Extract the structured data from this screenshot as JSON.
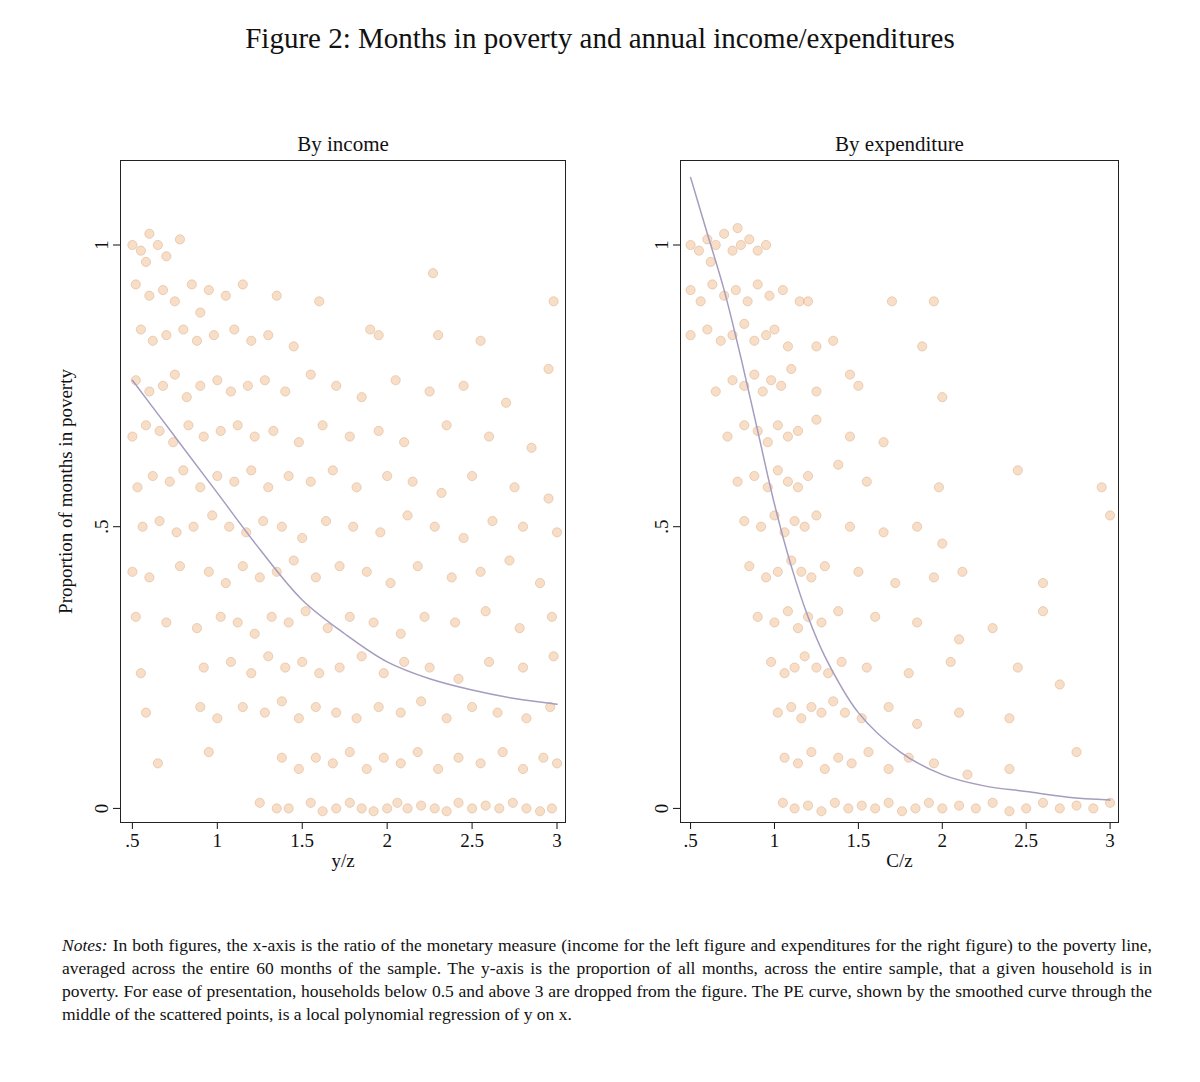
{
  "title": "Figure 2: Months in poverty and annual income/expenditures",
  "notes_label": "Notes:",
  "notes": "In both figures, the x-axis is the ratio of the monetary measure (income for the left figure and expenditures for the right figure) to the poverty line, averaged across the entire 60 months of the sample. The y-axis is the proportion of all months, across the entire sample, that a given household is in poverty. For ease of presentation, households below 0.5 and above 3 are dropped from the figure. The PE curve, shown by the smoothed curve through the middle of the scattered points, is a local polynomial regression of y on x.",
  "chart_data": [
    {
      "type": "scatter",
      "title": "By income",
      "xlabel": "y/z",
      "ylabel": "Proportion of months in poverty",
      "xlim": [
        0.43,
        3.05
      ],
      "ylim": [
        -0.025,
        1.15
      ],
      "xticks": [
        {
          "value": 0.5,
          "label": ".5"
        },
        1,
        1.5,
        2,
        2.5,
        3
      ],
      "yticks": [
        0,
        {
          "value": 0.5,
          "label": ".5"
        },
        1
      ],
      "grid": false,
      "series": [
        {
          "type": "scatter",
          "marker": "circle",
          "color": "#f2c299",
          "x": [
            0.5,
            0.55,
            0.6,
            0.65,
            0.7,
            0.78,
            0.58,
            0.52,
            0.6,
            0.68,
            0.75,
            0.85,
            0.95,
            1.05,
            1.15,
            1.35,
            1.6,
            2.27,
            0.9,
            0.55,
            0.62,
            0.7,
            0.8,
            0.88,
            0.98,
            1.1,
            1.2,
            1.3,
            1.45,
            1.9,
            1.95,
            2.3,
            2.55,
            2.98,
            0.52,
            0.6,
            0.68,
            0.75,
            0.82,
            0.9,
            1.0,
            1.08,
            1.18,
            1.28,
            1.4,
            1.55,
            1.7,
            1.85,
            2.05,
            2.25,
            2.45,
            2.7,
            2.95,
            0.5,
            0.58,
            0.66,
            0.74,
            0.83,
            0.92,
            1.02,
            1.12,
            1.22,
            1.33,
            1.48,
            1.62,
            1.78,
            1.95,
            2.1,
            2.35,
            2.6,
            2.85,
            0.53,
            0.62,
            0.72,
            0.8,
            0.9,
            1.0,
            1.1,
            1.2,
            1.3,
            1.42,
            1.55,
            1.68,
            1.82,
            2.0,
            2.15,
            2.32,
            2.5,
            2.75,
            2.95,
            0.56,
            0.66,
            0.76,
            0.86,
            0.97,
            1.07,
            1.17,
            1.27,
            1.38,
            1.5,
            1.64,
            1.8,
            1.96,
            2.12,
            2.28,
            2.45,
            2.62,
            2.8,
            3.0,
            0.5,
            0.6,
            0.78,
            0.95,
            1.05,
            1.15,
            1.25,
            1.35,
            1.45,
            1.58,
            1.72,
            1.88,
            2.02,
            2.18,
            2.38,
            2.55,
            2.72,
            2.9,
            0.52,
            0.7,
            0.88,
            1.02,
            1.12,
            1.22,
            1.32,
            1.42,
            1.52,
            1.65,
            1.78,
            1.92,
            2.08,
            2.22,
            2.4,
            2.58,
            2.78,
            2.97,
            0.55,
            0.92,
            1.08,
            1.2,
            1.3,
            1.4,
            1.5,
            1.6,
            1.72,
            1.85,
            1.98,
            2.1,
            2.25,
            2.42,
            2.6,
            2.8,
            2.98,
            0.58,
            0.9,
            1.0,
            1.15,
            1.28,
            1.38,
            1.48,
            1.58,
            1.7,
            1.82,
            1.95,
            2.08,
            2.2,
            2.35,
            2.5,
            2.65,
            2.82,
            2.96,
            0.65,
            0.95,
            1.38,
            1.48,
            1.58,
            1.68,
            1.78,
            1.88,
            1.98,
            2.08,
            2.18,
            2.3,
            2.42,
            2.55,
            2.68,
            2.8,
            2.92,
            3.0,
            1.25,
            1.35,
            1.42,
            1.55,
            1.62,
            1.7,
            1.78,
            1.85,
            1.92,
            2.0,
            2.06,
            2.12,
            2.2,
            2.28,
            2.35,
            2.42,
            2.5,
            2.58,
            2.66,
            2.74,
            2.82,
            2.9,
            2.97
          ],
          "values": [
            1.0,
            0.99,
            1.02,
            1.0,
            0.98,
            1.01,
            0.97,
            0.93,
            0.91,
            0.92,
            0.9,
            0.93,
            0.92,
            0.91,
            0.93,
            0.91,
            0.9,
            0.95,
            0.88,
            0.85,
            0.83,
            0.84,
            0.85,
            0.83,
            0.84,
            0.85,
            0.83,
            0.84,
            0.82,
            0.85,
            0.84,
            0.84,
            0.83,
            0.9,
            0.76,
            0.74,
            0.75,
            0.77,
            0.73,
            0.75,
            0.76,
            0.74,
            0.75,
            0.76,
            0.74,
            0.77,
            0.75,
            0.73,
            0.76,
            0.74,
            0.75,
            0.72,
            0.78,
            0.66,
            0.68,
            0.67,
            0.65,
            0.68,
            0.66,
            0.67,
            0.68,
            0.66,
            0.67,
            0.65,
            0.68,
            0.66,
            0.67,
            0.65,
            0.68,
            0.66,
            0.64,
            0.57,
            0.59,
            0.58,
            0.6,
            0.57,
            0.59,
            0.58,
            0.6,
            0.57,
            0.59,
            0.58,
            0.6,
            0.57,
            0.59,
            0.58,
            0.56,
            0.59,
            0.57,
            0.55,
            0.5,
            0.51,
            0.49,
            0.5,
            0.52,
            0.5,
            0.49,
            0.51,
            0.5,
            0.48,
            0.51,
            0.5,
            0.49,
            0.52,
            0.5,
            0.48,
            0.51,
            0.5,
            0.49,
            0.42,
            0.41,
            0.43,
            0.42,
            0.4,
            0.43,
            0.41,
            0.42,
            0.44,
            0.41,
            0.43,
            0.42,
            0.4,
            0.43,
            0.41,
            0.42,
            0.44,
            0.4,
            0.34,
            0.33,
            0.32,
            0.34,
            0.33,
            0.31,
            0.34,
            0.33,
            0.35,
            0.32,
            0.34,
            0.33,
            0.31,
            0.34,
            0.33,
            0.35,
            0.32,
            0.34,
            0.24,
            0.25,
            0.26,
            0.24,
            0.27,
            0.25,
            0.26,
            0.24,
            0.25,
            0.27,
            0.24,
            0.26,
            0.25,
            0.23,
            0.26,
            0.25,
            0.27,
            0.17,
            0.18,
            0.16,
            0.18,
            0.17,
            0.19,
            0.16,
            0.18,
            0.17,
            0.16,
            0.18,
            0.17,
            0.19,
            0.16,
            0.18,
            0.17,
            0.16,
            0.18,
            0.08,
            0.1,
            0.09,
            0.07,
            0.09,
            0.08,
            0.1,
            0.07,
            0.09,
            0.08,
            0.1,
            0.07,
            0.09,
            0.08,
            0.1,
            0.07,
            0.09,
            0.08,
            0.01,
            0.0,
            0.0,
            0.01,
            -0.005,
            0.0,
            0.01,
            0.0,
            -0.005,
            0.0,
            0.01,
            0.0,
            0.005,
            0.0,
            -0.005,
            0.01,
            0.0,
            0.005,
            0.0,
            0.01,
            0.0,
            -0.005,
            0.0
          ]
        },
        {
          "type": "line",
          "line_style": "solid",
          "color": "#a59cc0",
          "x": [
            0.5,
            0.75,
            1.0,
            1.25,
            1.5,
            1.75,
            2.0,
            2.25,
            2.5,
            2.75,
            3.0
          ],
          "values": [
            0.76,
            0.66,
            0.56,
            0.46,
            0.37,
            0.31,
            0.26,
            0.23,
            0.21,
            0.195,
            0.185
          ]
        }
      ]
    },
    {
      "type": "scatter",
      "title": "By expenditure",
      "xlabel": "C/z",
      "xlim": [
        0.44,
        3.05
      ],
      "ylim": [
        -0.025,
        1.15
      ],
      "xticks": [
        {
          "value": 0.5,
          "label": ".5"
        },
        1,
        1.5,
        2,
        2.5,
        3
      ],
      "yticks": [
        0,
        {
          "value": 0.5,
          "label": ".5"
        },
        1
      ],
      "grid": false,
      "series": [
        {
          "type": "scatter",
          "marker": "circle",
          "color": "#f2c299",
          "x": [
            0.5,
            0.55,
            0.6,
            0.65,
            0.7,
            0.75,
            0.8,
            0.85,
            0.9,
            0.95,
            0.62,
            0.78,
            0.5,
            0.56,
            0.63,
            0.7,
            0.77,
            0.84,
            0.9,
            0.97,
            1.05,
            1.15,
            1.2,
            1.7,
            1.95,
            0.5,
            0.6,
            0.68,
            0.75,
            0.82,
            0.88,
            0.95,
            1.0,
            1.08,
            1.25,
            1.35,
            1.88,
            0.65,
            0.75,
            0.82,
            0.88,
            0.93,
            0.98,
            1.04,
            1.1,
            1.25,
            1.45,
            1.5,
            0.72,
            0.82,
            0.9,
            0.96,
            1.02,
            1.08,
            1.14,
            1.25,
            1.45,
            1.65,
            2.0,
            0.78,
            0.88,
            0.96,
            1.02,
            1.08,
            1.14,
            1.2,
            1.38,
            1.55,
            1.98,
            2.45,
            0.82,
            0.92,
            1.0,
            1.06,
            1.12,
            1.18,
            1.25,
            1.45,
            1.65,
            1.85,
            2.0,
            0.85,
            0.95,
            1.02,
            1.1,
            1.16,
            1.22,
            1.3,
            1.5,
            1.72,
            1.95,
            2.12,
            0.9,
            1.0,
            1.08,
            1.14,
            1.2,
            1.28,
            1.38,
            1.6,
            1.85,
            2.1,
            2.3,
            2.6,
            0.98,
            1.06,
            1.12,
            1.18,
            1.25,
            1.32,
            1.4,
            1.55,
            1.8,
            2.05,
            2.45,
            2.7,
            1.02,
            1.1,
            1.16,
            1.22,
            1.28,
            1.35,
            1.42,
            1.52,
            1.68,
            1.85,
            2.1,
            2.4,
            1.06,
            1.14,
            1.22,
            1.3,
            1.38,
            1.46,
            1.56,
            1.68,
            1.8,
            1.95,
            2.15,
            2.4,
            2.8,
            1.05,
            1.12,
            1.2,
            1.28,
            1.36,
            1.44,
            1.52,
            1.6,
            1.68,
            1.76,
            1.84,
            1.92,
            2.0,
            2.1,
            2.2,
            2.3,
            2.4,
            2.5,
            2.6,
            2.7,
            2.8,
            2.9,
            3.0,
            2.95,
            3.0,
            2.6
          ],
          "values": [
            1.0,
            0.99,
            1.01,
            1.0,
            1.02,
            0.99,
            1.0,
            1.01,
            0.99,
            1.0,
            0.97,
            1.03,
            0.92,
            0.9,
            0.93,
            0.91,
            0.92,
            0.9,
            0.93,
            0.91,
            0.92,
            0.9,
            0.9,
            0.9,
            0.9,
            0.84,
            0.85,
            0.83,
            0.84,
            0.86,
            0.83,
            0.84,
            0.85,
            0.82,
            0.82,
            0.83,
            0.82,
            0.74,
            0.76,
            0.75,
            0.77,
            0.74,
            0.76,
            0.75,
            0.78,
            0.74,
            0.77,
            0.75,
            0.66,
            0.68,
            0.67,
            0.65,
            0.68,
            0.66,
            0.67,
            0.69,
            0.66,
            0.65,
            0.73,
            0.58,
            0.59,
            0.57,
            0.6,
            0.58,
            0.57,
            0.59,
            0.61,
            0.58,
            0.57,
            0.6,
            0.51,
            0.5,
            0.52,
            0.49,
            0.51,
            0.5,
            0.52,
            0.5,
            0.49,
            0.5,
            0.47,
            0.43,
            0.41,
            0.42,
            0.44,
            0.42,
            0.41,
            0.43,
            0.42,
            0.4,
            0.41,
            0.42,
            0.34,
            0.33,
            0.35,
            0.32,
            0.34,
            0.33,
            0.35,
            0.34,
            0.33,
            0.3,
            0.32,
            0.35,
            0.26,
            0.24,
            0.25,
            0.27,
            0.25,
            0.24,
            0.26,
            0.25,
            0.24,
            0.26,
            0.25,
            0.22,
            0.17,
            0.18,
            0.16,
            0.18,
            0.17,
            0.19,
            0.17,
            0.16,
            0.18,
            0.15,
            0.17,
            0.16,
            0.09,
            0.08,
            0.1,
            0.07,
            0.09,
            0.08,
            0.1,
            0.07,
            0.09,
            0.08,
            0.06,
            0.07,
            0.1,
            0.01,
            0.0,
            0.005,
            -0.005,
            0.01,
            0.0,
            0.005,
            0.0,
            0.01,
            -0.005,
            0.0,
            0.01,
            0.0,
            0.005,
            0.0,
            0.01,
            -0.005,
            0.0,
            0.01,
            0.0,
            0.005,
            0.0,
            0.01,
            0.57,
            0.52,
            0.4
          ]
        },
        {
          "type": "line",
          "line_style": "solid",
          "color": "#a59cc0",
          "x": [
            0.5,
            0.6,
            0.7,
            0.8,
            0.9,
            1.0,
            1.1,
            1.2,
            1.3,
            1.5,
            1.75,
            2.0,
            2.25,
            2.5,
            2.75,
            3.0
          ],
          "values": [
            1.12,
            1.02,
            0.92,
            0.8,
            0.67,
            0.54,
            0.43,
            0.34,
            0.27,
            0.17,
            0.1,
            0.06,
            0.04,
            0.03,
            0.02,
            0.015
          ]
        }
      ]
    }
  ]
}
